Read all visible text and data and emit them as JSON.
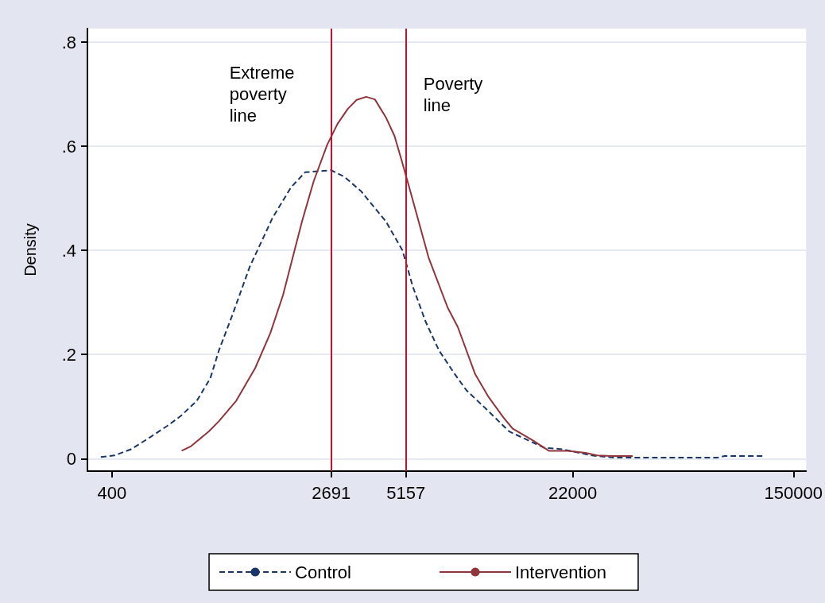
{
  "chart_data": {
    "type": "line",
    "ylabel": "Density",
    "log": "x",
    "xlim": [
      323,
      167500
    ],
    "xticks": [
      400,
      2691,
      5157,
      22000,
      150000
    ],
    "ylim": [
      -0.024,
      0.826
    ],
    "yticks": [
      {
        "value": 0,
        "label": "0"
      },
      {
        "value": 0.2,
        "label": ".2"
      },
      {
        "value": 0.4,
        "label": ".4"
      },
      {
        "value": 0.6,
        "label": ".6"
      },
      {
        "value": 0.8,
        "label": ".8"
      }
    ],
    "grid": "y",
    "legend": "bottom",
    "series": [
      {
        "name": "Control",
        "color": "#1a3668",
        "line_style": "dashed",
        "x": [
          363,
          408,
          472,
          557,
          647,
          728,
          836,
          940,
          1014,
          1138,
          1324,
          1618,
          1897,
          2145,
          2692,
          3027,
          3499,
          3853,
          4327,
          5003,
          5470,
          6109,
          6871,
          7819,
          8735,
          10090,
          12670,
          17140,
          20090,
          25940,
          31620,
          77450,
          82410,
          116200
        ],
        "values": [
          0.003,
          0.006,
          0.018,
          0.041,
          0.063,
          0.082,
          0.111,
          0.154,
          0.208,
          0.275,
          0.368,
          0.463,
          0.521,
          0.55,
          0.554,
          0.541,
          0.513,
          0.487,
          0.456,
          0.4,
          0.331,
          0.264,
          0.208,
          0.165,
          0.131,
          0.101,
          0.052,
          0.021,
          0.018,
          0.006,
          0.002,
          0.002,
          0.005,
          0.005
        ]
      },
      {
        "name": "Intervention",
        "color": "#90353b",
        "line_style": "solid",
        "x": [
          733,
          796,
          927,
          1014,
          1178,
          1390,
          1585,
          1770,
          2089,
          2312,
          2600,
          2844,
          3112,
          3357,
          3648,
          3936,
          4327,
          4667,
          4966,
          5321,
          6281,
          7413,
          8094,
          9419,
          10590,
          12080,
          13030,
          15560,
          17870,
          21090,
          24550,
          27230,
          31620,
          37070
        ],
        "values": [
          0.015,
          0.024,
          0.052,
          0.072,
          0.111,
          0.174,
          0.241,
          0.314,
          0.456,
          0.533,
          0.603,
          0.643,
          0.672,
          0.689,
          0.695,
          0.69,
          0.656,
          0.62,
          0.573,
          0.519,
          0.386,
          0.29,
          0.253,
          0.162,
          0.118,
          0.078,
          0.058,
          0.035,
          0.015,
          0.015,
          0.011,
          0.006,
          0.005,
          0.005
        ]
      }
    ],
    "ref_lines": [
      {
        "axis": "x",
        "value": 2691,
        "label": "Extreme poverty line",
        "color": "#c8102e"
      },
      {
        "axis": "x",
        "value": 5157,
        "label": "Poverty line",
        "color": "#c8102e"
      }
    ]
  }
}
